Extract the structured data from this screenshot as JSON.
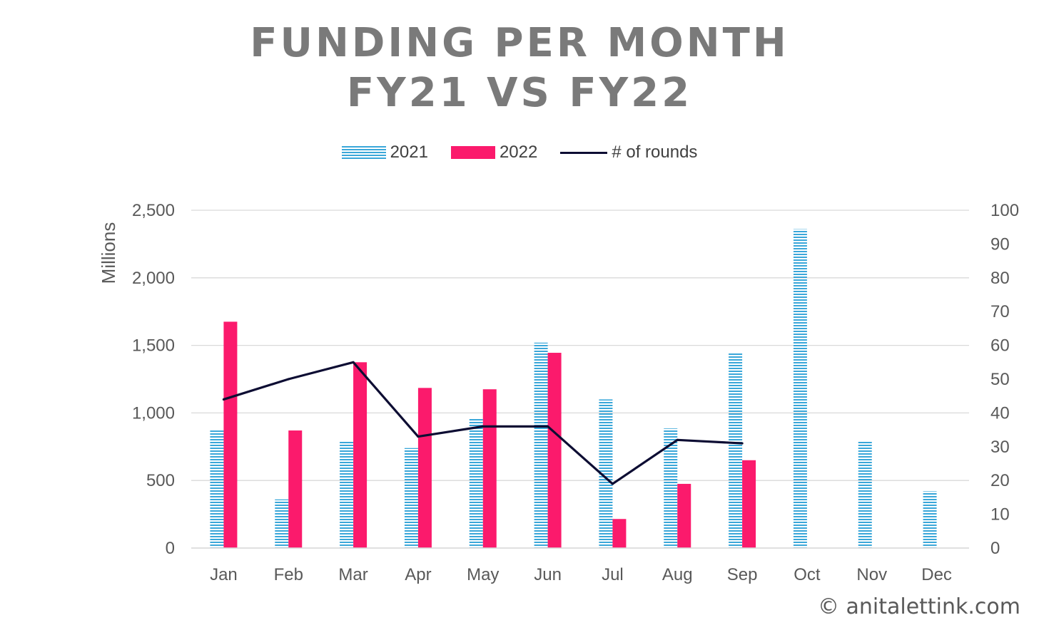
{
  "title_line1": "FUNDING PER MONTH",
  "title_line2": "FY21 VS FY22",
  "legend": {
    "s2021": "2021",
    "s2022": "2022",
    "rounds": "# of rounds"
  },
  "credit": "© anitalettink.com",
  "colors": {
    "s2021": "#3aa7d9",
    "s2022": "#fb1a6c",
    "rounds": "#0d0d33",
    "grid": "#d9d9d9",
    "title": "#7a7a7a"
  },
  "chart_data": {
    "type": "bar",
    "title": "FUNDING PER MONTH FY21 VS FY22",
    "categories": [
      "Jan",
      "Feb",
      "Mar",
      "Apr",
      "May",
      "Jun",
      "Jul",
      "Aug",
      "Sep",
      "Oct",
      "Nov",
      "Dec"
    ],
    "ylabel": "Millions",
    "ylim": [
      0,
      2500
    ],
    "y_ticks": [
      "0",
      "500",
      "1,000",
      "1,500",
      "2,000",
      "2,500"
    ],
    "y2lim": [
      0,
      100
    ],
    "y2_ticks": [
      "0",
      "10",
      "20",
      "30",
      "40",
      "50",
      "60",
      "70",
      "80",
      "90",
      "100"
    ],
    "grid": true,
    "legend_position": "top",
    "series": [
      {
        "name": "2021",
        "type": "bar",
        "axis": "left",
        "values": [
          870,
          360,
          795,
          740,
          965,
          1520,
          1100,
          885,
          1450,
          2360,
          790,
          420
        ]
      },
      {
        "name": "2022",
        "type": "bar",
        "axis": "left",
        "values": [
          1675,
          870,
          1375,
          1185,
          1175,
          1445,
          215,
          475,
          650,
          null,
          null,
          null
        ]
      },
      {
        "name": "# of rounds",
        "type": "line",
        "axis": "right",
        "values": [
          44,
          50,
          55,
          33,
          36,
          36,
          19,
          32,
          31,
          null,
          null,
          null
        ]
      }
    ]
  }
}
